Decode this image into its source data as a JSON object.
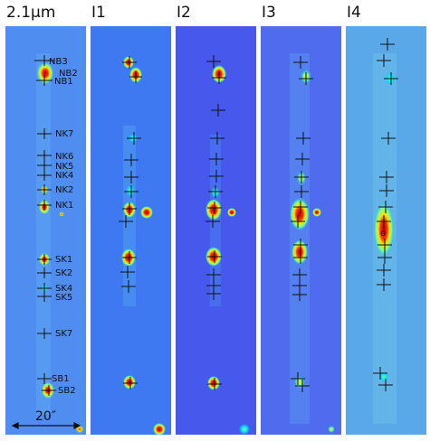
{
  "panels": [
    {
      "title": "2.1μm",
      "bg": "#4f8df0"
    },
    {
      "title": "I1",
      "bg": "#3f79f2"
    },
    {
      "title": "I2",
      "bg": "#4758ec"
    },
    {
      "title": "I3",
      "bg": "#4f6cee"
    },
    {
      "title": "I4",
      "bg": "#5aa8e8"
    }
  ],
  "knot_labels": [
    "NB3",
    "NB2",
    "NB1",
    "NK7",
    "NK6",
    "NK5",
    "NK4",
    "NK2",
    "NK1",
    "SK1",
    "SK2",
    "SK4",
    "SK5",
    "SK7",
    "SB1",
    "SB2"
  ],
  "scale_bar": {
    "label": "20″"
  },
  "extra_marker": {
    "label": "o"
  },
  "colormap": [
    "#00008f",
    "#0050ff",
    "#00dfff",
    "#7fff7f",
    "#ffdf00",
    "#ff3000",
    "#b00000"
  ]
}
